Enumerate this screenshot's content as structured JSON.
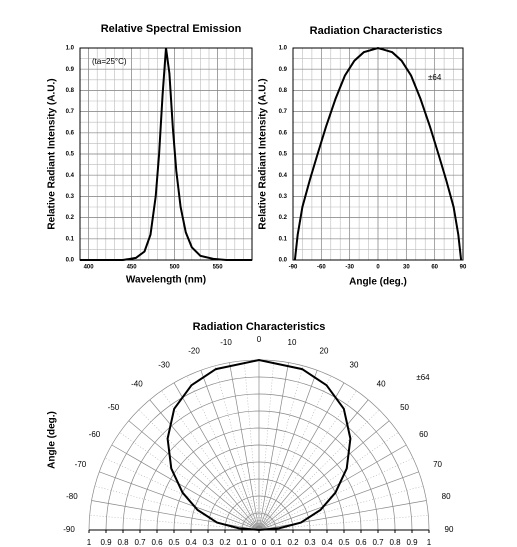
{
  "chart_data": [
    {
      "type": "line",
      "title": "Relative Spectral Emission",
      "x_label": "Wavelength (nm)",
      "y_label": "Relative Radiant Intensity (A.U.)",
      "annotation": "(ta=25°C)",
      "color": "#000000",
      "grid": true,
      "x": [
        390,
        440,
        455,
        465,
        472,
        478,
        482,
        486,
        490,
        494,
        498,
        502,
        507,
        513,
        520,
        530,
        545,
        560,
        590
      ],
      "values": [
        0,
        0,
        0.01,
        0.04,
        0.12,
        0.3,
        0.5,
        0.78,
        1.0,
        0.88,
        0.62,
        0.42,
        0.25,
        0.13,
        0.06,
        0.02,
        0.005,
        0,
        0
      ],
      "xlim": [
        390,
        590
      ],
      "xticks": [
        400,
        450,
        500,
        550
      ],
      "ylim": [
        0,
        1
      ],
      "yticks": [
        {
          "value": 0,
          "label": "0.0"
        },
        0.1,
        0.2,
        0.3,
        0.4,
        0.5,
        0.6,
        0.7,
        0.8,
        0.9,
        {
          "value": 1,
          "label": "1.0"
        }
      ]
    },
    {
      "type": "line",
      "title": "Radiation Characteristics",
      "x_label": "Angle (deg.)",
      "y_label": "Relative Radiant Intensity (A.U.)",
      "annotation": "±64",
      "color": "#000000",
      "grid": true,
      "x": [
        -88,
        -85,
        -80,
        -72,
        -64,
        -55,
        -45,
        -35,
        -25,
        -15,
        0,
        15,
        25,
        35,
        45,
        55,
        64,
        72,
        80,
        85,
        88
      ],
      "values": [
        0,
        0.12,
        0.25,
        0.38,
        0.5,
        0.63,
        0.76,
        0.87,
        0.94,
        0.98,
        1,
        0.98,
        0.94,
        0.87,
        0.76,
        0.63,
        0.5,
        0.38,
        0.25,
        0.12,
        0
      ],
      "xlim": [
        -90,
        90
      ],
      "xticks": [
        -90,
        -60,
        -30,
        0,
        30,
        60,
        90
      ],
      "ylim": [
        0,
        1
      ],
      "yticks": [
        {
          "value": 0,
          "label": "0.0"
        },
        0.1,
        0.2,
        0.3,
        0.4,
        0.5,
        0.6,
        0.7,
        0.8,
        0.9,
        {
          "value": 1,
          "label": "1.0"
        }
      ]
    },
    {
      "type": "polar",
      "title": "Radiation Characteristics",
      "y_label": "Angle (deg.)",
      "annotation": "±64",
      "color": "#000000",
      "theta": [
        -88,
        -85,
        -80,
        -72,
        -64,
        -55,
        -45,
        -35,
        -25,
        -15,
        0,
        15,
        25,
        35,
        45,
        55,
        64,
        72,
        80,
        85,
        88
      ],
      "r": [
        0,
        0.12,
        0.25,
        0.38,
        0.5,
        0.63,
        0.76,
        0.87,
        0.94,
        0.98,
        1,
        0.98,
        0.94,
        0.87,
        0.76,
        0.63,
        0.5,
        0.38,
        0.25,
        0.12,
        0
      ],
      "rlim": [
        0,
        1
      ],
      "rticks": [
        0,
        0.1,
        0.2,
        0.3,
        0.4,
        0.5,
        0.6,
        0.7,
        0.8,
        0.9,
        1
      ],
      "angle_ticks": [
        -90,
        -80,
        -70,
        -60,
        -50,
        -40,
        -30,
        -20,
        -10,
        0,
        10,
        20,
        30,
        40,
        50,
        60,
        70,
        80,
        90
      ]
    }
  ]
}
